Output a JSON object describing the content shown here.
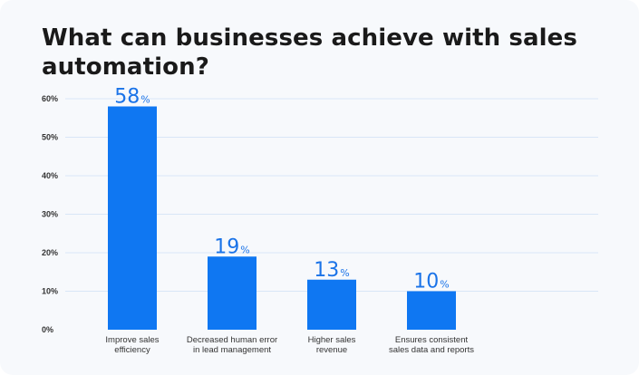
{
  "page": {
    "title_line1": "What can businesses achieve with sales",
    "title_line2": "automation?"
  },
  "chart_data": {
    "type": "bar",
    "title": "What can businesses achieve with sales automation?",
    "categories": [
      [
        "Improve sales",
        "efficiency"
      ],
      [
        "Decreased human error",
        "in lead management"
      ],
      [
        "Higher sales",
        "revenue"
      ],
      [
        "Ensures consistent",
        "sales data and reports"
      ]
    ],
    "values": [
      58,
      19,
      13,
      10
    ],
    "data_label_suffix": "%",
    "yticks": [
      "0%",
      "10%",
      "20%",
      "30%",
      "40%",
      "50%",
      "60%"
    ],
    "ylim": [
      0,
      60
    ],
    "grid": true,
    "legend": "none",
    "colors": {
      "bar": "#0f77f2",
      "label": "#1a73e8",
      "grid": "#d9e6f7"
    }
  }
}
